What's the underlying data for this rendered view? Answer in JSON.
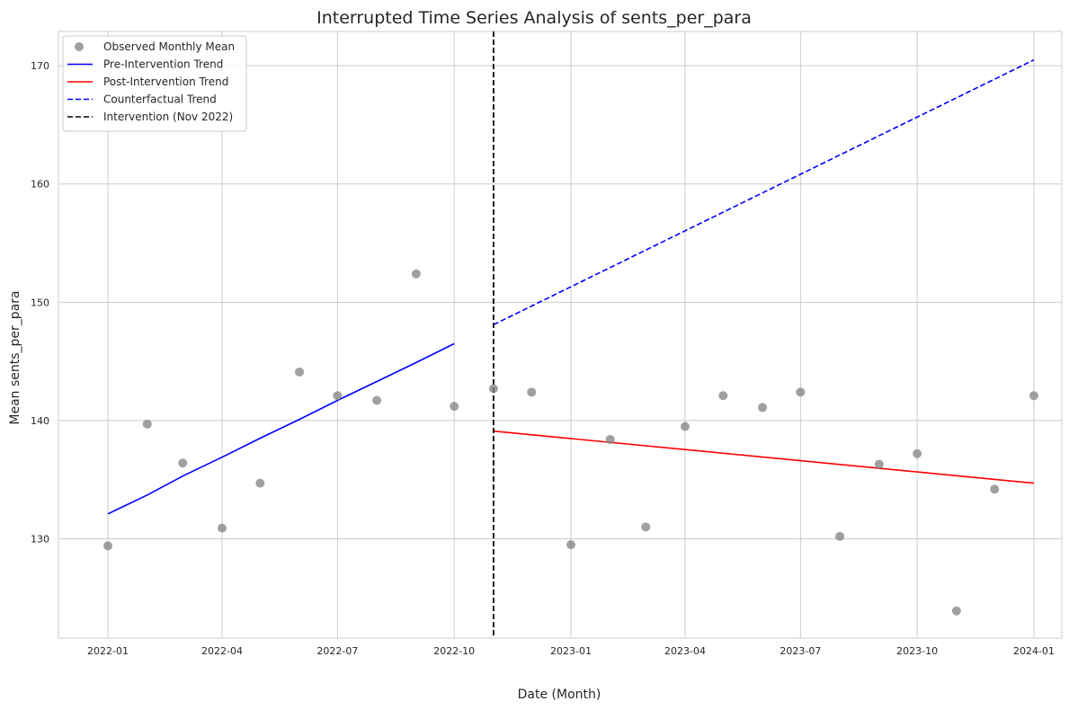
{
  "chart_data": {
    "type": "scatter",
    "title": "Interrupted Time Series Analysis of sents_per_para",
    "xlabel": "Date (Month)",
    "ylabel": "Mean sents_per_para",
    "x_range": [
      "2021-11-23",
      "2024-01-23"
    ],
    "ylim": [
      121.6,
      172.9
    ],
    "grid": true,
    "legend_position": "top-left",
    "x_ticks": [
      "2022-01",
      "2022-04",
      "2022-07",
      "2022-10",
      "2023-01",
      "2023-04",
      "2023-07",
      "2023-10",
      "2024-01"
    ],
    "y_ticks": [
      130,
      140,
      150,
      160,
      170
    ],
    "colors": {
      "observed": "#808080",
      "pre": "#0000ff",
      "post": "#ff0000",
      "counterfactual": "#0000ff",
      "intervention": "#000000",
      "grid": "#cccccc"
    },
    "series": [
      {
        "name": "Observed Monthly Mean",
        "kind": "scatter",
        "points": [
          {
            "x": "2022-01-01",
            "y": 129.4
          },
          {
            "x": "2022-02-01",
            "y": 139.7
          },
          {
            "x": "2022-03-01",
            "y": 136.4
          },
          {
            "x": "2022-04-01",
            "y": 130.9
          },
          {
            "x": "2022-05-01",
            "y": 134.7
          },
          {
            "x": "2022-06-01",
            "y": 144.1
          },
          {
            "x": "2022-07-01",
            "y": 142.1
          },
          {
            "x": "2022-08-01",
            "y": 141.7
          },
          {
            "x": "2022-09-01",
            "y": 152.4
          },
          {
            "x": "2022-10-01",
            "y": 141.2
          },
          {
            "x": "2022-11-01",
            "y": 142.7
          },
          {
            "x": "2022-12-01",
            "y": 142.4
          },
          {
            "x": "2023-01-01",
            "y": 129.5
          },
          {
            "x": "2023-02-01",
            "y": 138.4
          },
          {
            "x": "2023-03-01",
            "y": 131.0
          },
          {
            "x": "2023-04-01",
            "y": 139.5
          },
          {
            "x": "2023-05-01",
            "y": 142.1
          },
          {
            "x": "2023-06-01",
            "y": 141.1
          },
          {
            "x": "2023-07-01",
            "y": 142.4
          },
          {
            "x": "2023-08-01",
            "y": 130.2
          },
          {
            "x": "2023-09-01",
            "y": 136.3
          },
          {
            "x": "2023-10-01",
            "y": 137.2
          },
          {
            "x": "2023-11-01",
            "y": 123.9
          },
          {
            "x": "2023-12-01",
            "y": 134.2
          },
          {
            "x": "2024-01-01",
            "y": 142.1
          }
        ]
      },
      {
        "name": "Pre-Intervention Trend",
        "kind": "line",
        "dash": "solid",
        "points": [
          {
            "x": "2022-01-01",
            "y": 132.1
          },
          {
            "x": "2022-02-01",
            "y": 133.7
          },
          {
            "x": "2022-03-01",
            "y": 135.3
          },
          {
            "x": "2022-04-01",
            "y": 136.9
          },
          {
            "x": "2022-05-01",
            "y": 138.5
          },
          {
            "x": "2022-06-01",
            "y": 140.1
          },
          {
            "x": "2022-07-01",
            "y": 141.7
          },
          {
            "x": "2022-08-01",
            "y": 143.3
          },
          {
            "x": "2022-09-01",
            "y": 144.9
          },
          {
            "x": "2022-10-01",
            "y": 146.5
          }
        ]
      },
      {
        "name": "Post-Intervention Trend",
        "kind": "line",
        "dash": "solid",
        "points": [
          {
            "x": "2022-11-01",
            "y": 139.1
          },
          {
            "x": "2024-01-01",
            "y": 134.7
          }
        ]
      },
      {
        "name": "Counterfactual Trend",
        "kind": "line",
        "dash": "dashed",
        "points": [
          {
            "x": "2022-11-01",
            "y": 148.1
          },
          {
            "x": "2024-01-01",
            "y": 170.5
          }
        ]
      },
      {
        "name": "Intervention (Nov 2022)",
        "kind": "vline",
        "dash": "dashed",
        "x": "2022-11-01"
      }
    ]
  }
}
